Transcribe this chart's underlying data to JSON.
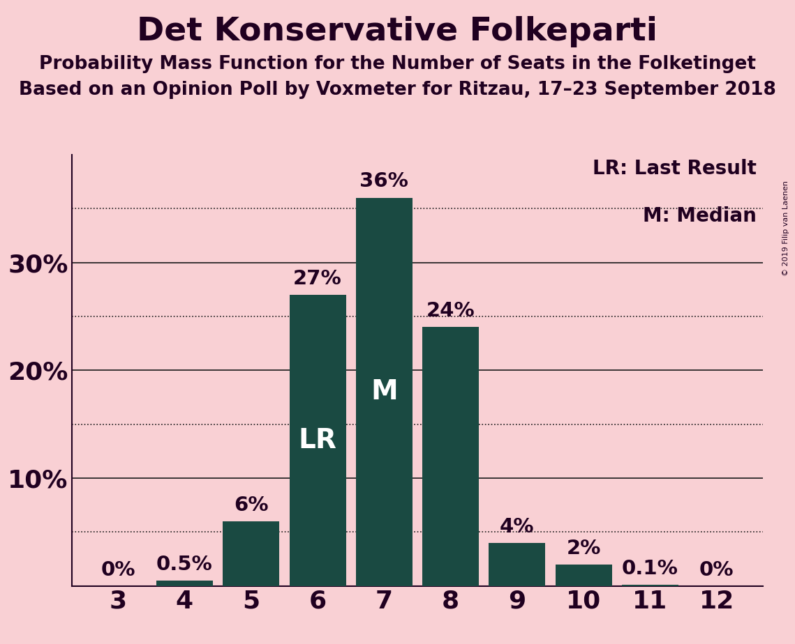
{
  "title": "Det Konservative Folkeparti",
  "subtitle1": "Probability Mass Function for the Number of Seats in the Folketinget",
  "subtitle2": "Based on an Opinion Poll by Voxmeter for Ritzau, 17–23 September 2018",
  "copyright": "© 2019 Filip van Laenen",
  "seats": [
    3,
    4,
    5,
    6,
    7,
    8,
    9,
    10,
    11,
    12
  ],
  "probabilities": [
    0.0,
    0.5,
    6.0,
    27.0,
    36.0,
    24.0,
    4.0,
    2.0,
    0.1,
    0.0
  ],
  "bar_labels": [
    "0%",
    "0.5%",
    "6%",
    "27%",
    "36%",
    "24%",
    "4%",
    "2%",
    "0.1%",
    "0%"
  ],
  "bar_color": "#1a4a42",
  "background_color": "#f9d0d4",
  "LR_seat": 6,
  "M_seat": 7,
  "solid_gridlines": [
    10,
    20,
    30
  ],
  "dotted_gridlines": [
    5,
    15,
    25,
    35
  ],
  "ytick_positions": [
    10,
    20,
    30
  ],
  "ytick_labels": [
    "10%",
    "20%",
    "30%"
  ],
  "ylim": [
    0,
    40
  ],
  "xlim": [
    2.3,
    12.7
  ],
  "grid_color": "#1a1a1a",
  "label_color": "#200020",
  "title_fontsize": 34,
  "subtitle_fontsize": 19,
  "axis_tick_fontsize": 26,
  "bar_label_fontsize": 21,
  "inside_label_fontsize": 28,
  "legend_fontsize": 20
}
